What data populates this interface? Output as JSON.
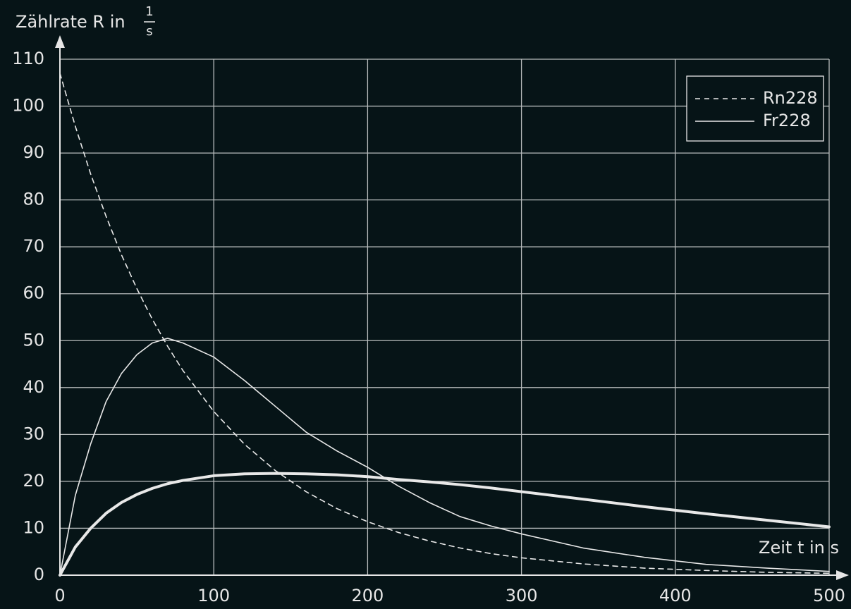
{
  "chart_data": {
    "type": "line",
    "ylabel": "Zählrate R in",
    "ylabel_unit": {
      "numerator": "1",
      "denominator": "s"
    },
    "xlabel": "Zeit t in s",
    "x": [
      0,
      10,
      20,
      30,
      40,
      50,
      60,
      70,
      80,
      100,
      120,
      140,
      160,
      180,
      200,
      220,
      240,
      260,
      280,
      300,
      340,
      380,
      420,
      460,
      500
    ],
    "series": [
      {
        "name": "Rn228",
        "color": "#e8e8e8",
        "style": "dashed",
        "values": [
          107,
          95.7,
          85.5,
          76.5,
          68.3,
          61.1,
          54.6,
          48.8,
          43.6,
          34.9,
          27.9,
          22.3,
          17.8,
          14.2,
          11.4,
          9.1,
          7.3,
          5.8,
          4.6,
          3.7,
          2.4,
          1.5,
          1.0,
          0.6,
          0.4
        ]
      },
      {
        "name": "Fr228",
        "color": "#e8e8e8",
        "style": "solid",
        "values": [
          0,
          17,
          28,
          37,
          43,
          47,
          49.5,
          50.5,
          49.5,
          46.5,
          41.5,
          36,
          30.5,
          26.5,
          23,
          19,
          15.5,
          12.5,
          10.5,
          8.8,
          5.8,
          3.8,
          2.3,
          1.5,
          0.8
        ]
      },
      {
        "color": "#e8e8e8",
        "style": "bold",
        "values": [
          0,
          6,
          10,
          13.2,
          15.5,
          17.2,
          18.5,
          19.5,
          20.2,
          21.2,
          21.6,
          21.7,
          21.6,
          21.4,
          21,
          20.4,
          19.9,
          19.3,
          18.6,
          17.8,
          16.2,
          14.6,
          13.1,
          11.7,
          10.3
        ]
      }
    ],
    "xlim": [
      0,
      500
    ],
    "xticks": [
      0,
      100,
      200,
      300,
      400,
      500
    ],
    "ylim": [
      0,
      110
    ],
    "yticks": [
      0,
      10,
      20,
      30,
      40,
      50,
      60,
      70,
      80,
      90,
      100,
      110
    ],
    "grid": true,
    "legend": "top-right"
  }
}
